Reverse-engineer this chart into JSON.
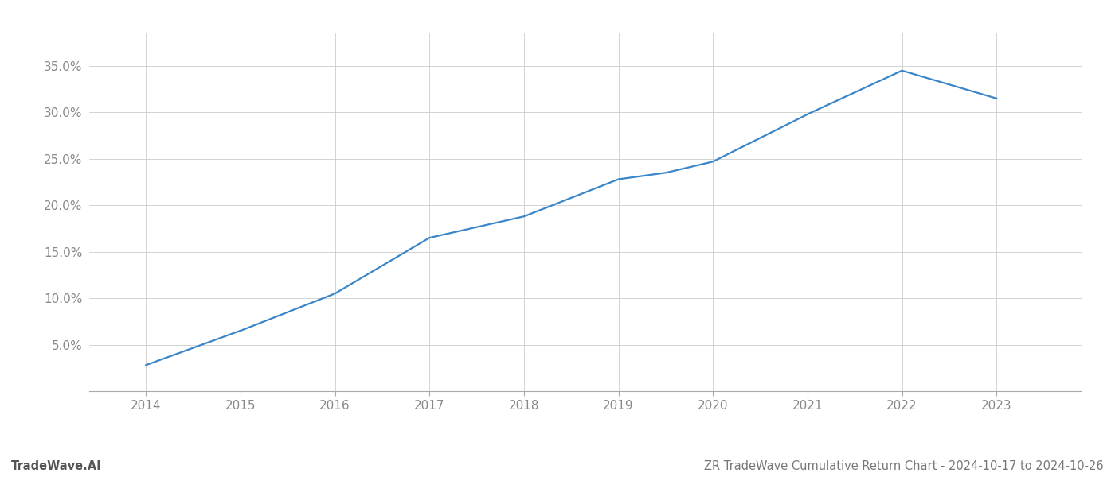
{
  "x_values": [
    2014,
    2015,
    2016,
    2017,
    2018,
    2019,
    2019.5,
    2020,
    2021,
    2022,
    2023
  ],
  "y_values": [
    2.8,
    6.5,
    10.5,
    16.5,
    18.8,
    22.8,
    23.5,
    24.7,
    29.8,
    34.5,
    31.5
  ],
  "line_color": "#3a86c8",
  "line_width": 1.6,
  "title": "ZR TradeWave Cumulative Return Chart - 2024-10-17 to 2024-10-26",
  "watermark": "TradeWave.AI",
  "xlim": [
    2013.4,
    2023.9
  ],
  "ylim": [
    0.0,
    38.5
  ],
  "yticks": [
    5.0,
    10.0,
    15.0,
    20.0,
    25.0,
    30.0,
    35.0
  ],
  "xticks": [
    2014,
    2015,
    2016,
    2017,
    2018,
    2019,
    2020,
    2021,
    2022,
    2023
  ],
  "background_color": "#ffffff",
  "grid_color": "#cccccc",
  "title_fontsize": 10.5,
  "watermark_fontsize": 10.5,
  "tick_fontsize": 11,
  "tick_color": "#888888"
}
